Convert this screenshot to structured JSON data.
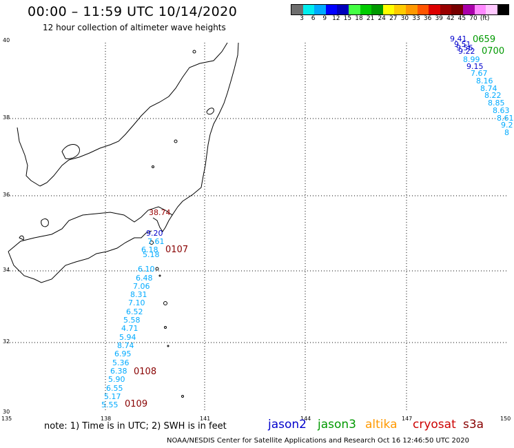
{
  "title": "00:00 – 11:59 UTC 10/14/2020",
  "subtitle": "12 hour collection of altimeter wave heights",
  "colorbar": {
    "colors": [
      "#6e6e6e",
      "#00eeee",
      "#00aaff",
      "#0000ff",
      "#0000bb",
      "#44ff44",
      "#00cc00",
      "#009900",
      "#ffff00",
      "#ffcc00",
      "#ff9900",
      "#ff5500",
      "#dd0000",
      "#990000",
      "#770000",
      "#aa00aa",
      "#ff88ff",
      "#ffc8ff",
      "#000000"
    ],
    "labels": [
      "3",
      "6",
      "9",
      "12",
      "15",
      "18",
      "21",
      "24",
      "27",
      "30",
      "33",
      "36",
      "39",
      "42",
      "45",
      "70"
    ],
    "unit": "(ft)"
  },
  "axes": {
    "lat_labels": [
      "40",
      "38",
      "36",
      "34",
      "32",
      "30"
    ],
    "lon_labels": [
      "135",
      "138",
      "141",
      "144",
      "147",
      "150"
    ]
  },
  "footer": {
    "note": "note:  1) Time is in UTC;  2) SWH is in feet",
    "credit": "NOAA/NESDIS Center for Satellite Applications and Research     Oct 16 12:46:50 UTC 2020"
  },
  "satellites": [
    {
      "name": "jason2",
      "color": "#0000cc"
    },
    {
      "name": "jason3",
      "color": "#009900"
    },
    {
      "name": "altika",
      "color": "#ff9900"
    },
    {
      "name": "cryosat",
      "color": "#cc0000"
    },
    {
      "name": "s3a",
      "color": "#880000"
    }
  ],
  "track_west": {
    "values": [
      "38.74",
      "9.20",
      "7.61",
      "6.18",
      "5.18",
      "6.10",
      "6.48",
      "7.06",
      "8.31",
      "7.10",
      "6.52",
      "5.58",
      "4.71",
      "5.94",
      "8.74",
      "6.95",
      "5.36",
      "6.38",
      "5.90",
      "6.55",
      "5.17",
      "5.55"
    ],
    "colors": [
      "#990000",
      "#0000cc",
      "#00aaff",
      "#00aaff",
      "#00aaff",
      "#00aaff",
      "#00aaff",
      "#00aaff",
      "#00aaff",
      "#00aaff",
      "#00aaff",
      "#00aaff",
      "#00aaff",
      "#00aaff",
      "#00aaff",
      "#00aaff",
      "#00aaff",
      "#00aaff",
      "#00aaff",
      "#00aaff",
      "#00aaff",
      "#00aaff"
    ],
    "times": [
      "0107",
      "0108",
      "0109"
    ]
  },
  "track_east": {
    "values": [
      "9.41",
      "9.51",
      "9.56",
      "9.22",
      "8.99",
      "9.15",
      "7.67",
      "8.16",
      "8.74",
      "8.22",
      "8.85",
      "8.63",
      "8.61",
      "9.2",
      "8"
    ],
    "colors": [
      "#0000cc",
      "#0000cc",
      "#0000cc",
      "#0000cc",
      "#00aaff",
      "#0000cc",
      "#00aaff",
      "#00aaff",
      "#00aaff",
      "#00aaff",
      "#00aaff",
      "#00aaff",
      "#00aaff",
      "#00aaff",
      "#00aaff"
    ],
    "times": [
      "0659",
      "0700"
    ]
  }
}
